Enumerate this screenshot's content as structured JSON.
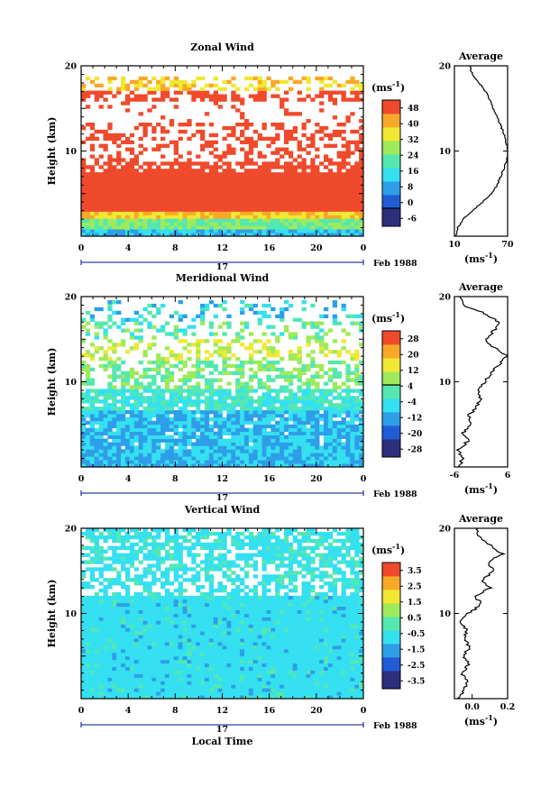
{
  "chart_data": [
    {
      "type": "heatmap",
      "title": "Zonal Wind",
      "ylabel": "Height (km)",
      "xlabel": "",
      "x_ticks": [
        "0",
        "4",
        "8",
        "12",
        "16",
        "20",
        "0"
      ],
      "y_ticks": [
        "10",
        "20"
      ],
      "ylim": [
        0,
        20
      ],
      "xlim": [
        0,
        24
      ],
      "date_day": "17",
      "date_month": "Feb 1988",
      "colorbar": {
        "unit": "(ms",
        "unit_exp": "-1",
        "unit_close": ")",
        "levels": [
          -6,
          0,
          8,
          16,
          24,
          32,
          40,
          48
        ],
        "labels": [
          "48",
          "40",
          "32",
          "24",
          "16",
          "8",
          "0",
          "-6"
        ]
      },
      "average": {
        "title": "Average",
        "x_ticks": [
          "10",
          "70"
        ],
        "xlim": [
          10,
          70
        ],
        "y_ticks": [
          "10",
          "20"
        ],
        "xlabel": "(ms",
        "xlabel_exp": "-1",
        "xlabel_close": ")",
        "profile": [
          [
            12,
            0
          ],
          [
            14,
            1
          ],
          [
            20,
            2
          ],
          [
            30,
            3
          ],
          [
            42,
            4
          ],
          [
            52,
            5
          ],
          [
            58,
            6
          ],
          [
            62,
            7
          ],
          [
            66,
            8
          ],
          [
            69,
            9
          ],
          [
            71,
            10
          ],
          [
            68,
            11
          ],
          [
            66,
            12
          ],
          [
            62,
            13
          ],
          [
            58,
            14
          ],
          [
            54,
            15
          ],
          [
            50,
            16
          ],
          [
            45,
            17
          ],
          [
            38,
            18
          ],
          [
            30,
            19
          ],
          [
            27,
            20
          ]
        ]
      }
    },
    {
      "type": "heatmap",
      "title": "Meridional Wind",
      "ylabel": "Height (km)",
      "xlabel": "",
      "x_ticks": [
        "0",
        "4",
        "8",
        "12",
        "16",
        "20",
        "0"
      ],
      "y_ticks": [
        "10",
        "20"
      ],
      "ylim": [
        0,
        20
      ],
      "xlim": [
        0,
        24
      ],
      "date_day": "17",
      "date_month": "Feb 1988",
      "colorbar": {
        "unit": "(ms",
        "unit_exp": "-1",
        "unit_close": ")",
        "levels": [
          -28,
          -20,
          -12,
          -4,
          4,
          12,
          20,
          28
        ],
        "labels": [
          "28",
          "20",
          "12",
          "4",
          "-4",
          "-12",
          "-20",
          "-28"
        ]
      },
      "average": {
        "title": "Average",
        "x_ticks": [
          "-6",
          "6"
        ],
        "xlim": [
          -6,
          6
        ],
        "y_ticks": [
          "10",
          "20"
        ],
        "xlabel": "(ms",
        "xlabel_exp": "-1",
        "xlabel_close": ")",
        "profile": [
          [
            -5,
            0
          ],
          [
            -4,
            1
          ],
          [
            -5,
            2
          ],
          [
            -3,
            3
          ],
          [
            -4,
            4
          ],
          [
            -2,
            5
          ],
          [
            -3,
            6
          ],
          [
            -1,
            7
          ],
          [
            0,
            8
          ],
          [
            -1,
            9
          ],
          [
            1,
            10
          ],
          [
            2,
            11
          ],
          [
            4,
            12
          ],
          [
            6,
            13
          ],
          [
            3,
            14
          ],
          [
            1,
            15
          ],
          [
            3,
            16
          ],
          [
            4,
            17
          ],
          [
            1,
            18
          ],
          [
            -4,
            19
          ],
          [
            -5,
            20
          ]
        ]
      }
    },
    {
      "type": "heatmap",
      "title": "Vertical Wind",
      "ylabel": "Height (km)",
      "xlabel": "Local Time",
      "x_ticks": [
        "0",
        "4",
        "8",
        "12",
        "16",
        "20",
        "0"
      ],
      "y_ticks": [
        "10",
        "20"
      ],
      "ylim": [
        0,
        20
      ],
      "xlim": [
        0,
        24
      ],
      "date_day": "17",
      "date_month": "Feb 1988",
      "colorbar": {
        "unit": "(ms",
        "unit_exp": "-1",
        "unit_close": ")",
        "levels": [
          -3.5,
          -2.5,
          -1.5,
          -0.5,
          0.5,
          1.5,
          2.5,
          3.5
        ],
        "labels": [
          "3.5",
          "2.5",
          "1.5",
          "0.5",
          "-0.5",
          "-1.5",
          "-2.5",
          "-3.5"
        ]
      },
      "average": {
        "title": "Average",
        "x_ticks": [
          "0.0",
          "0.2"
        ],
        "xlim": [
          -0.1,
          0.2
        ],
        "y_ticks": [
          "10",
          "20"
        ],
        "xlabel": "(ms",
        "xlabel_exp": "-1",
        "xlabel_close": ")",
        "profile": [
          [
            -0.08,
            0
          ],
          [
            -0.04,
            1
          ],
          [
            -0.03,
            2
          ],
          [
            -0.06,
            3
          ],
          [
            -0.02,
            4
          ],
          [
            -0.05,
            5
          ],
          [
            -0.02,
            6
          ],
          [
            -0.04,
            7
          ],
          [
            -0.03,
            8
          ],
          [
            -0.06,
            9
          ],
          [
            -0.02,
            10
          ],
          [
            0.05,
            11
          ],
          [
            0.02,
            12
          ],
          [
            0.1,
            13
          ],
          [
            0.06,
            14
          ],
          [
            0.13,
            15
          ],
          [
            0.09,
            16
          ],
          [
            0.17,
            17
          ],
          [
            0.1,
            18
          ],
          [
            0.04,
            19
          ],
          [
            0.02,
            20
          ]
        ]
      }
    }
  ],
  "colors": {
    "scale": [
      "#2b2f7e",
      "#1f5cd6",
      "#2e9ee8",
      "#35e0f0",
      "#54e8b0",
      "#9fea5a",
      "#f0e832",
      "#f8a828",
      "#f04a2c"
    ],
    "missing": "#ffffff",
    "axis": "#000000",
    "date_line": "#2f3fa8"
  }
}
